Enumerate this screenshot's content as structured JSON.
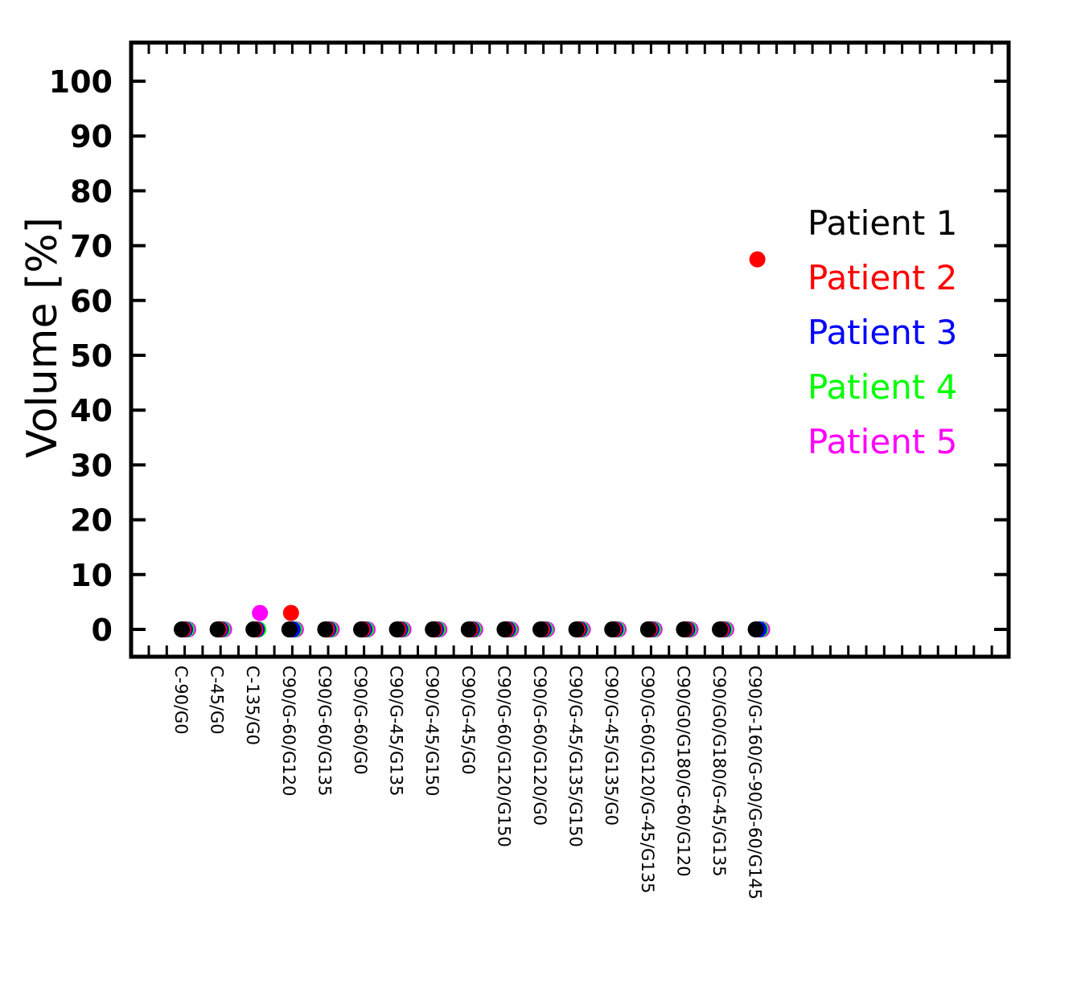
{
  "chart_data": {
    "type": "scatter",
    "title": "",
    "xlabel": "",
    "ylabel": "Volume  [%]",
    "ylim": [
      -5,
      105
    ],
    "yticks": [
      0,
      10,
      20,
      30,
      40,
      50,
      60,
      70,
      80,
      90,
      100
    ],
    "grid": false,
    "legend_position": "right",
    "categories": [
      "C-90/G0",
      "C-45/G0",
      "C-135/G0",
      "C90/G-60/G120",
      "C90/G-60/G135",
      "C90/G-60/G0",
      "C90/G-45/G135",
      "C90/G-45/G150",
      "C90/G-45/G0",
      "C90/G-60/G120/G150",
      "C90/G-60/G120/G0",
      "C90/G-45/G135/G150",
      "C90/G-45/G135/G0",
      "C90/G-60/G120/G-45/G135",
      "C90/G0/G180/G-60/G120",
      "C90/G0/G180/G-45/G135",
      "C90/G-160/G-90/G-60/G145"
    ],
    "series": [
      {
        "name": "Patient  1",
        "color": "#000000",
        "values": [
          0,
          0,
          0,
          0,
          0,
          0,
          0,
          0,
          0,
          0,
          0,
          0,
          0,
          0,
          0,
          0,
          0
        ]
      },
      {
        "name": "Patient  2",
        "color": "#ff0000",
        "values": [
          0,
          0,
          0,
          3,
          0,
          0,
          0,
          0,
          0,
          0,
          0,
          0,
          0,
          0,
          0,
          0,
          67.5
        ]
      },
      {
        "name": "Patient  3",
        "color": "#0000ff",
        "values": [
          0,
          0,
          0,
          0,
          0,
          0,
          0,
          0,
          0,
          0,
          0,
          0,
          0,
          0,
          0,
          0,
          0
        ]
      },
      {
        "name": "Patient  4",
        "color": "#00ff00",
        "values": [
          0,
          0,
          0,
          0,
          0,
          0,
          0,
          0,
          0,
          0,
          0,
          0,
          0,
          0,
          0,
          0,
          0
        ]
      },
      {
        "name": "Patient  5",
        "color": "#ff00ff",
        "values": [
          0,
          0,
          3,
          0,
          0,
          0,
          0,
          0,
          0,
          0,
          0,
          0,
          0,
          0,
          0,
          0,
          0
        ]
      }
    ]
  }
}
